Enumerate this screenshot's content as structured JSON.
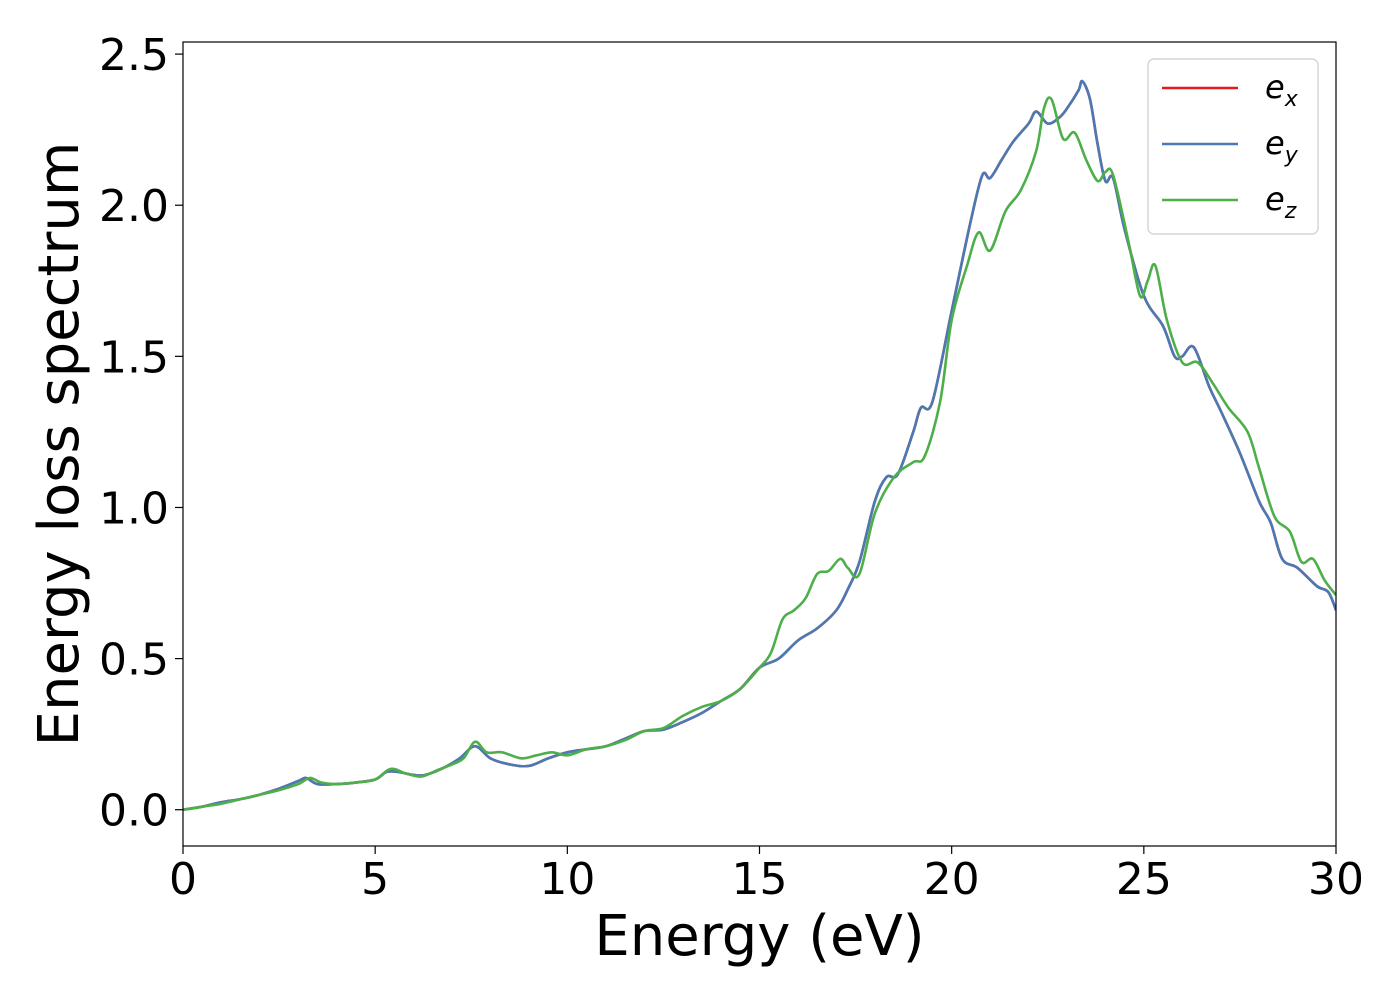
{
  "chart_data": {
    "type": "line",
    "title": "",
    "xlabel": "Energy (eV)",
    "ylabel": "Energy loss spectrum",
    "xlim": [
      0,
      30
    ],
    "ylim": [
      -0.12,
      2.54
    ],
    "xticks": [
      0,
      5,
      10,
      15,
      20,
      25,
      30
    ],
    "yticks": [
      0.0,
      0.5,
      1.0,
      1.5,
      2.0,
      2.5
    ],
    "xtick_labels": [
      "0",
      "5",
      "10",
      "15",
      "20",
      "25",
      "30"
    ],
    "ytick_labels": [
      "0.0",
      "0.5",
      "1.0",
      "1.5",
      "2.0",
      "2.5"
    ],
    "grid": false,
    "legend_position": "top-right",
    "series": [
      {
        "name": "e_x",
        "label_base": "e",
        "label_sub": "x",
        "color": "#e41a1c",
        "x": [
          0,
          0.5,
          1,
          1.5,
          2,
          2.5,
          3,
          3.2,
          3.5,
          4,
          4.5,
          5,
          5.3,
          5.6,
          6,
          6.3,
          6.8,
          7.2,
          7.6,
          8,
          8.5,
          9,
          9.5,
          10,
          10.5,
          11,
          11.5,
          12,
          12.5,
          13,
          13.5,
          14,
          14.5,
          15,
          15.5,
          16,
          16.5,
          17,
          17.3,
          17.6,
          18,
          18.3,
          18.6,
          19,
          19.2,
          19.5,
          20,
          20.5,
          20.8,
          21,
          21.3,
          21.6,
          22,
          22.2,
          22.5,
          22.8,
          23,
          23.3,
          23.4,
          23.6,
          23.8,
          24,
          24.2,
          24.5,
          25,
          25.5,
          25.8,
          26,
          26.3,
          26.7,
          27,
          27.5,
          28,
          28.3,
          28.6,
          29,
          29.5,
          29.8,
          30
        ],
        "values": [
          0.0,
          0.01,
          0.025,
          0.035,
          0.05,
          0.07,
          0.095,
          0.105,
          0.085,
          0.085,
          0.09,
          0.1,
          0.125,
          0.125,
          0.115,
          0.115,
          0.14,
          0.17,
          0.21,
          0.17,
          0.15,
          0.145,
          0.17,
          0.19,
          0.2,
          0.21,
          0.235,
          0.26,
          0.265,
          0.29,
          0.32,
          0.36,
          0.4,
          0.47,
          0.5,
          0.56,
          0.6,
          0.66,
          0.73,
          0.82,
          1.02,
          1.1,
          1.11,
          1.25,
          1.33,
          1.35,
          1.65,
          1.95,
          2.1,
          2.09,
          2.15,
          2.21,
          2.27,
          2.31,
          2.27,
          2.29,
          2.32,
          2.38,
          2.41,
          2.35,
          2.2,
          2.08,
          2.09,
          1.92,
          1.7,
          1.6,
          1.5,
          1.5,
          1.53,
          1.4,
          1.32,
          1.18,
          1.02,
          0.95,
          0.83,
          0.8,
          0.74,
          0.72,
          0.66
        ]
      },
      {
        "name": "e_y",
        "label_base": "e",
        "label_sub": "y",
        "color": "#4a7ab4",
        "x": [
          0,
          0.5,
          1,
          1.5,
          2,
          2.5,
          3,
          3.2,
          3.5,
          4,
          4.5,
          5,
          5.3,
          5.6,
          6,
          6.3,
          6.8,
          7.2,
          7.6,
          8,
          8.5,
          9,
          9.5,
          10,
          10.5,
          11,
          11.5,
          12,
          12.5,
          13,
          13.5,
          14,
          14.5,
          15,
          15.5,
          16,
          16.5,
          17,
          17.3,
          17.6,
          18,
          18.3,
          18.6,
          19,
          19.2,
          19.5,
          20,
          20.5,
          20.8,
          21,
          21.3,
          21.6,
          22,
          22.2,
          22.5,
          22.8,
          23,
          23.3,
          23.4,
          23.6,
          23.8,
          24,
          24.2,
          24.5,
          25,
          25.5,
          25.8,
          26,
          26.3,
          26.7,
          27,
          27.5,
          28,
          28.3,
          28.6,
          29,
          29.5,
          29.8,
          30
        ],
        "values": [
          0.0,
          0.01,
          0.025,
          0.035,
          0.05,
          0.07,
          0.095,
          0.105,
          0.085,
          0.085,
          0.09,
          0.1,
          0.125,
          0.125,
          0.115,
          0.115,
          0.14,
          0.17,
          0.21,
          0.17,
          0.15,
          0.145,
          0.17,
          0.19,
          0.2,
          0.21,
          0.235,
          0.26,
          0.265,
          0.29,
          0.32,
          0.36,
          0.4,
          0.47,
          0.5,
          0.56,
          0.6,
          0.66,
          0.73,
          0.82,
          1.02,
          1.1,
          1.11,
          1.25,
          1.33,
          1.35,
          1.65,
          1.95,
          2.1,
          2.09,
          2.15,
          2.21,
          2.27,
          2.31,
          2.27,
          2.29,
          2.32,
          2.38,
          2.41,
          2.35,
          2.2,
          2.08,
          2.09,
          1.92,
          1.7,
          1.6,
          1.5,
          1.5,
          1.53,
          1.4,
          1.32,
          1.18,
          1.02,
          0.95,
          0.83,
          0.8,
          0.74,
          0.72,
          0.66
        ]
      },
      {
        "name": "e_z",
        "label_base": "e",
        "label_sub": "z",
        "color": "#4daf4a",
        "x": [
          0,
          0.5,
          1,
          1.5,
          2,
          2.5,
          3,
          3.3,
          3.6,
          4,
          4.5,
          5,
          5.4,
          5.8,
          6.2,
          6.6,
          7,
          7.3,
          7.6,
          7.9,
          8.3,
          8.8,
          9.2,
          9.6,
          10,
          10.5,
          11,
          11.5,
          12,
          12.5,
          13,
          13.5,
          14,
          14.5,
          15,
          15.3,
          15.6,
          15.9,
          16.2,
          16.5,
          16.8,
          17.1,
          17.3,
          17.6,
          18,
          18.5,
          19,
          19.3,
          19.7,
          20,
          20.4,
          20.7,
          21,
          21.4,
          21.8,
          22.2,
          22.4,
          22.6,
          22.9,
          23.2,
          23.5,
          23.8,
          24,
          24.2,
          24.6,
          24.9,
          25.1,
          25.3,
          25.6,
          26,
          26.4,
          26.8,
          27.2,
          27.7,
          28,
          28.4,
          28.8,
          29.1,
          29.4,
          29.7,
          30
        ],
        "values": [
          0.0,
          0.01,
          0.02,
          0.035,
          0.05,
          0.065,
          0.085,
          0.105,
          0.09,
          0.085,
          0.09,
          0.1,
          0.135,
          0.12,
          0.11,
          0.13,
          0.15,
          0.17,
          0.225,
          0.19,
          0.19,
          0.17,
          0.18,
          0.19,
          0.18,
          0.2,
          0.21,
          0.23,
          0.26,
          0.27,
          0.31,
          0.34,
          0.36,
          0.4,
          0.47,
          0.52,
          0.63,
          0.66,
          0.7,
          0.78,
          0.79,
          0.83,
          0.8,
          0.78,
          0.98,
          1.1,
          1.15,
          1.17,
          1.35,
          1.62,
          1.8,
          1.91,
          1.85,
          1.98,
          2.05,
          2.18,
          2.32,
          2.35,
          2.22,
          2.24,
          2.15,
          2.08,
          2.11,
          2.1,
          1.88,
          1.7,
          1.75,
          1.8,
          1.62,
          1.48,
          1.48,
          1.41,
          1.33,
          1.25,
          1.13,
          0.97,
          0.92,
          0.82,
          0.83,
          0.76,
          0.71
        ]
      }
    ]
  }
}
